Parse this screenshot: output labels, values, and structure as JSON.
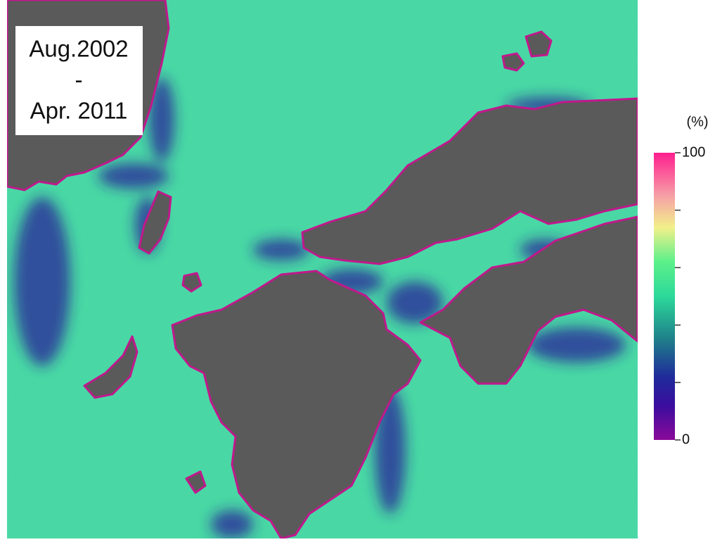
{
  "label": {
    "lines": [
      "Aug.2002",
      "-",
      "Apr. 2011"
    ]
  },
  "colorbar": {
    "unit": "(%)",
    "range": [
      0,
      100
    ],
    "ticks": [
      0,
      100
    ],
    "minor_ticks": [
      20,
      40,
      60,
      80
    ]
  }
}
